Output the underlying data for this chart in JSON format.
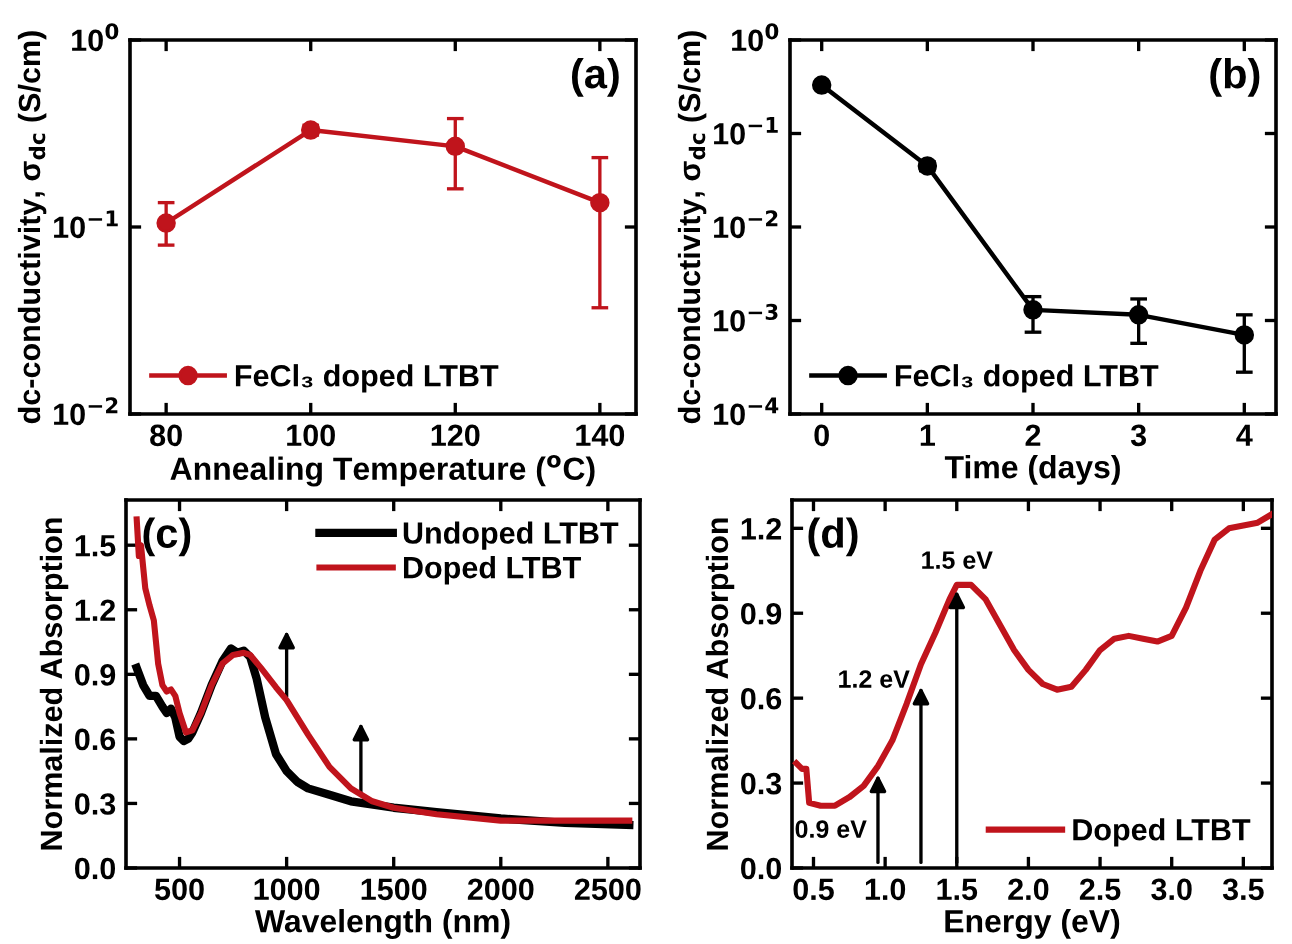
{
  "chart_data": [
    {
      "type": "line",
      "xlabel": "Annealing Temperature ($^{o}$C)",
      "ylabel": "dc-conductivity, σ$_{dc}$ (S/cm)",
      "x": [
        80,
        100,
        120,
        140
      ],
      "series": [
        {
          "name": "FeCl₃ doped LTBT",
          "color": "#c0141c",
          "values": [
            0.105,
            0.33,
            0.27,
            0.135
          ],
          "errors": [
            [
              0.08,
              0.135
            ],
            [
              0.31,
              0.35
            ],
            [
              0.16,
              0.38
            ],
            [
              0.037,
              0.235
            ]
          ]
        }
      ],
      "marker": "circle",
      "log": "y",
      "xlim": [
        75,
        145
      ],
      "xticks": [
        80,
        100,
        120,
        140
      ],
      "ylim": [
        0.01,
        1
      ],
      "yticks": [
        {
          "value": 0.01,
          "label": "10$^{−2}$"
        },
        {
          "value": 0.1,
          "label": "10$^{−1}$"
        },
        {
          "value": 1,
          "label": "10$^{0}$"
        }
      ],
      "legend": "bottom left",
      "grid": false,
      "annotations": [
        "(a)"
      ]
    },
    {
      "type": "line",
      "xlabel": "Time (days)",
      "ylabel": "dc-conductivity, σ$_{dc}$ (S/cm)",
      "x": [
        0,
        1,
        2,
        3,
        4
      ],
      "series": [
        {
          "name": "FeCl₃ doped LTBT",
          "color": "#000000",
          "values": [
            0.33,
            0.045,
            0.0013,
            0.00115,
            0.0007
          ],
          "errors": [
            null,
            [
              0.04,
              0.05
            ],
            [
              0.00075,
              0.0018
            ],
            [
              0.00057,
              0.0017
            ],
            [
              0.00028,
              0.00115
            ]
          ]
        }
      ],
      "marker": "circle",
      "log": "y",
      "xlim": [
        -0.3,
        4.3
      ],
      "xticks": [
        0,
        1,
        2,
        3,
        4
      ],
      "ylim": [
        0.0001,
        1
      ],
      "yticks": [
        {
          "value": 0.0001,
          "label": "10$^{−4}$"
        },
        {
          "value": 0.001,
          "label": "10$^{−3}$"
        },
        {
          "value": 0.01,
          "label": "10$^{−2}$"
        },
        {
          "value": 0.1,
          "label": "10$^{−1}$"
        },
        {
          "value": 1,
          "label": "10$^{0}$"
        }
      ],
      "legend": "bottom left",
      "grid": false,
      "annotations": [
        "(b)"
      ]
    },
    {
      "type": "line",
      "xlabel": "Wavelength (nm)",
      "ylabel": "Normalized Absorption",
      "series": [
        {
          "name": "Undoped LTBT",
          "color": "#000000",
          "x": [
            300,
            330,
            360,
            390,
            420,
            440,
            460,
            480,
            500,
            520,
            540,
            560,
            600,
            650,
            700,
            740,
            770,
            800,
            830,
            860,
            900,
            950,
            1000,
            1050,
            1100,
            1200,
            1300,
            1500,
            1700,
            2000,
            2300,
            2600
          ],
          "values": [
            0.93,
            0.85,
            0.8,
            0.8,
            0.75,
            0.72,
            0.74,
            0.7,
            0.61,
            0.59,
            0.6,
            0.63,
            0.72,
            0.85,
            0.96,
            1.02,
            1.0,
            1.01,
            0.98,
            0.88,
            0.7,
            0.53,
            0.45,
            0.4,
            0.37,
            0.34,
            0.31,
            0.28,
            0.26,
            0.23,
            0.21,
            0.2
          ]
        },
        {
          "name": "Doped LTBT",
          "color": "#c0141c",
          "x": [
            300,
            310,
            320,
            340,
            360,
            380,
            400,
            420,
            440,
            460,
            480,
            500,
            530,
            560,
            600,
            650,
            700,
            750,
            800,
            830,
            880,
            950,
            1000,
            1100,
            1200,
            1300,
            1400,
            1500,
            1700,
            2000,
            2300,
            2600
          ],
          "values": [
            1.62,
            1.45,
            1.5,
            1.3,
            1.22,
            1.15,
            0.95,
            0.85,
            0.82,
            0.83,
            0.8,
            0.72,
            0.63,
            0.64,
            0.72,
            0.85,
            0.95,
            0.99,
            1.0,
            0.99,
            0.93,
            0.84,
            0.78,
            0.62,
            0.47,
            0.37,
            0.31,
            0.28,
            0.25,
            0.22,
            0.22,
            0.22
          ]
        }
      ],
      "marker": "none",
      "xlim": [
        250,
        2650
      ],
      "xticks": [
        500,
        1000,
        1500,
        2000,
        2500
      ],
      "ylim": [
        0,
        1.71
      ],
      "yticks": [
        {
          "value": 0,
          "label": "0.0"
        },
        0.3,
        0.6,
        0.9,
        1.2,
        1.5
      ],
      "legend": "top right",
      "grid": false,
      "annotations": [
        "(c)"
      ]
    },
    {
      "type": "line",
      "xlabel": "Energy (eV)",
      "ylabel": "Normalized Absorption",
      "series": [
        {
          "name": "Doped LTBT",
          "color": "#c0141c",
          "x": [
            0.38,
            0.42,
            0.45,
            0.47,
            0.55,
            0.65,
            0.75,
            0.85,
            0.95,
            1.05,
            1.15,
            1.25,
            1.35,
            1.45,
            1.5,
            1.6,
            1.7,
            1.8,
            1.9,
            2.0,
            2.1,
            2.2,
            2.3,
            2.4,
            2.5,
            2.6,
            2.7,
            2.8,
            2.9,
            3.0,
            3.1,
            3.2,
            3.3,
            3.4,
            3.5,
            3.6,
            3.7
          ],
          "values": [
            0.37,
            0.35,
            0.35,
            0.23,
            0.22,
            0.22,
            0.25,
            0.29,
            0.36,
            0.45,
            0.58,
            0.72,
            0.83,
            0.95,
            1.0,
            1.0,
            0.95,
            0.86,
            0.77,
            0.7,
            0.65,
            0.63,
            0.64,
            0.7,
            0.77,
            0.81,
            0.82,
            0.81,
            0.8,
            0.82,
            0.92,
            1.05,
            1.16,
            1.2,
            1.21,
            1.22,
            1.25
          ]
        }
      ],
      "marker": "none",
      "xlim": [
        0.35,
        3.7
      ],
      "xticks": [
        0.5,
        {
          "value": 1,
          "label": "1.0"
        },
        1.5,
        {
          "value": 2,
          "label": "2.0"
        },
        2.5,
        {
          "value": 3,
          "label": "3.0"
        },
        3.5
      ],
      "ylim": [
        0,
        1.3
      ],
      "yticks": [
        {
          "value": 0,
          "label": "0.0"
        },
        0.3,
        0.6,
        0.9,
        1.2
      ],
      "legend": "bottom right",
      "grid": false,
      "annotations": [
        "(d)",
        {
          "text": "0.9 eV",
          "x": 0.95,
          "y": 0.35
        },
        {
          "text": "1.2 eV",
          "x": 1.25,
          "y": 0.66
        },
        {
          "text": "1.5 eV",
          "x": 1.5,
          "y": 1.0
        }
      ]
    }
  ]
}
